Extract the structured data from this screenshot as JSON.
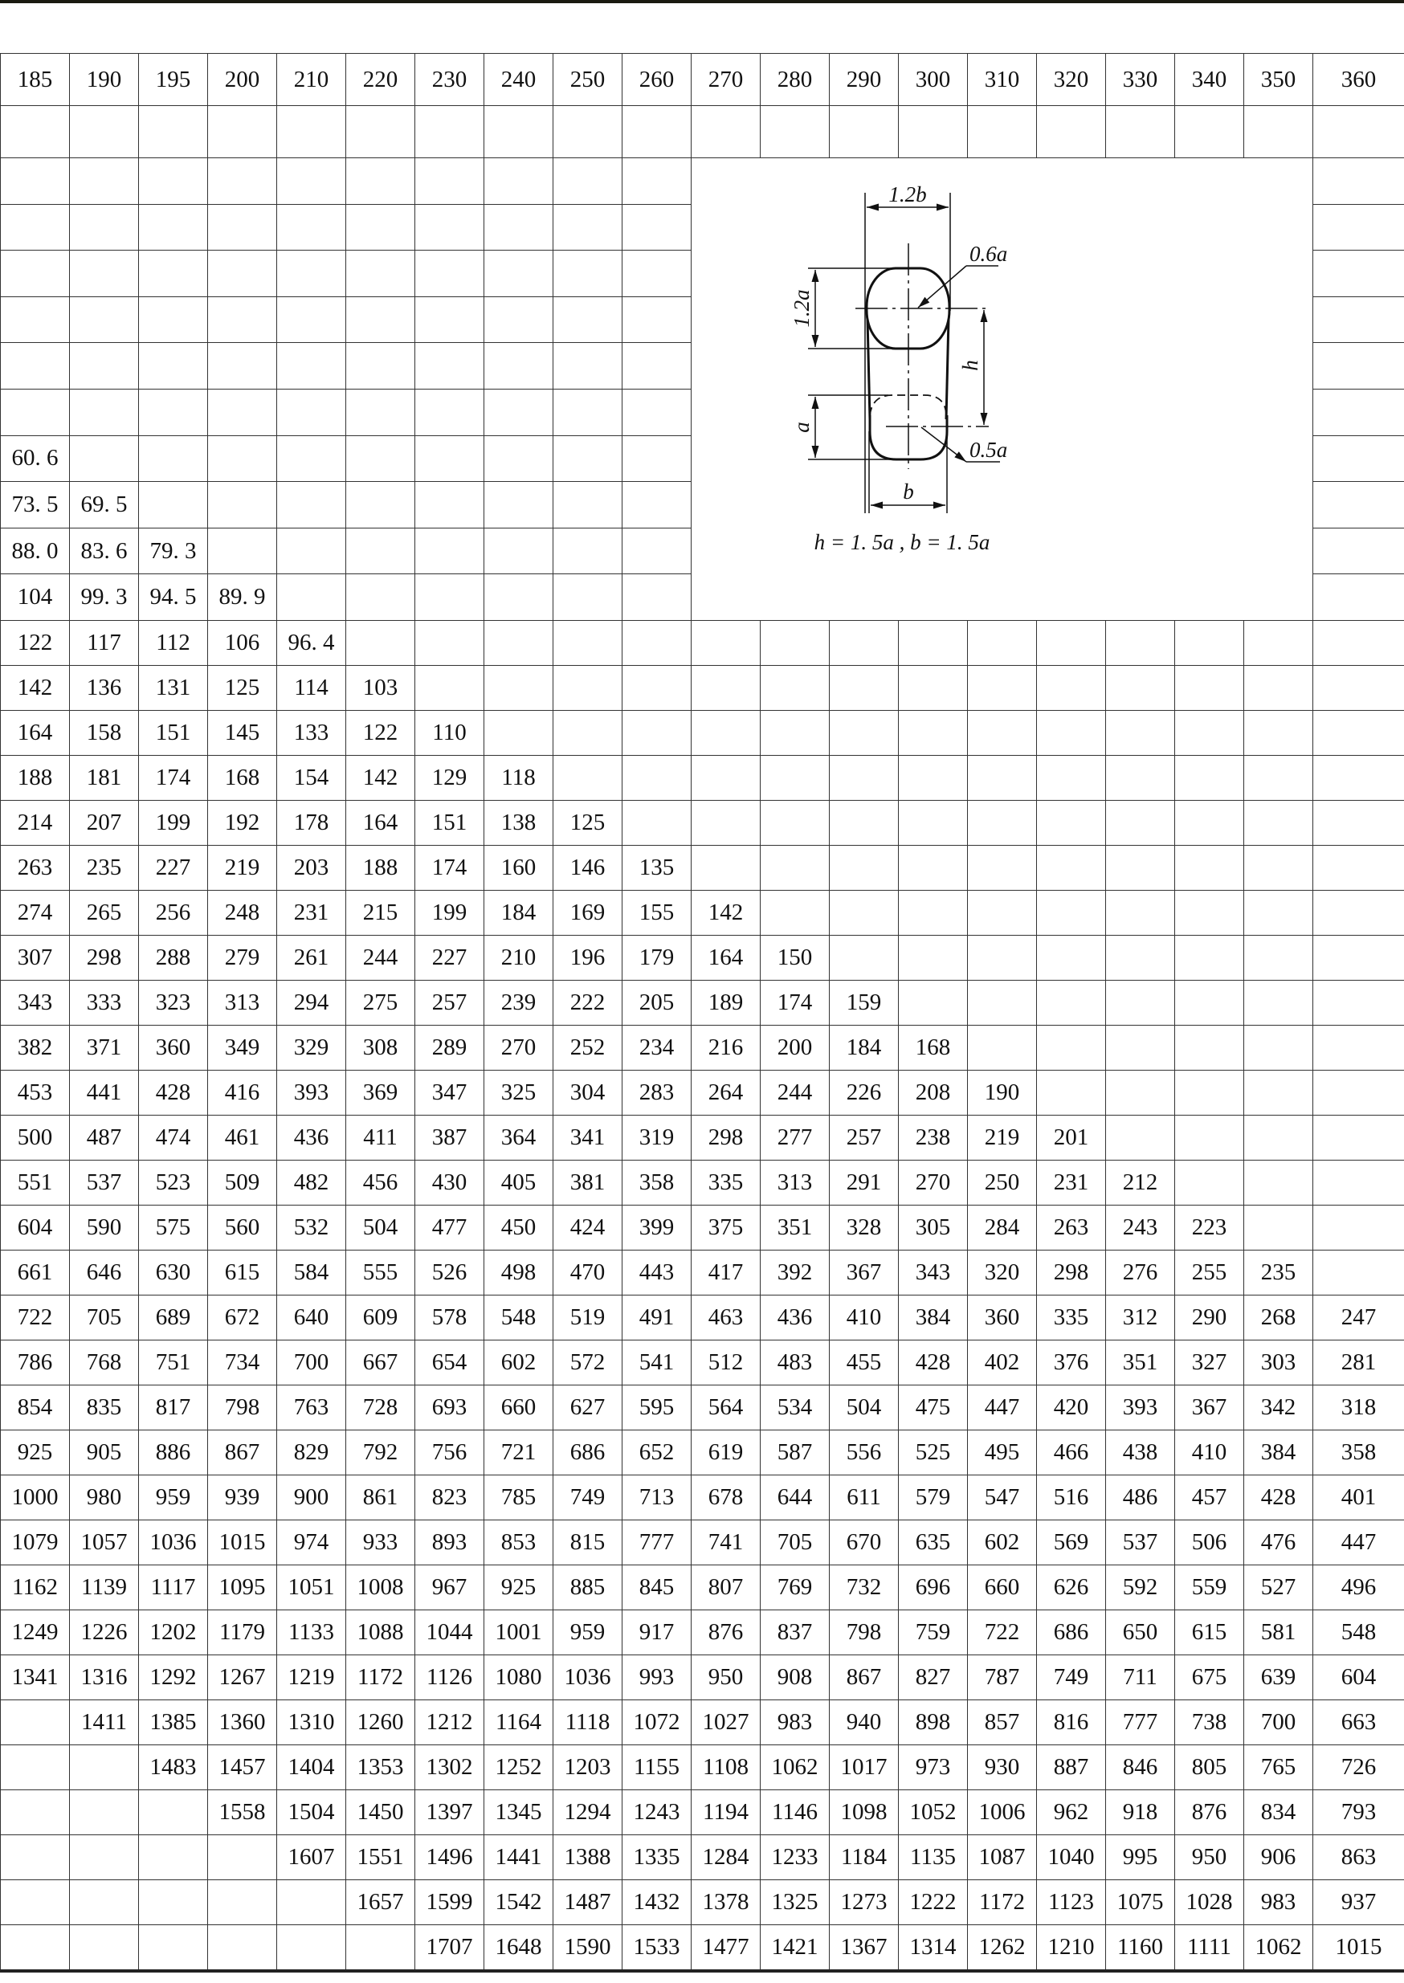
{
  "header": [
    "185",
    "190",
    "195",
    "200",
    "210",
    "220",
    "230",
    "240",
    "250",
    "260",
    "270",
    "280",
    "290",
    "300",
    "310",
    "320",
    "330",
    "340",
    "350",
    "360"
  ],
  "upper_rows": [
    [
      "",
      "",
      "",
      "",
      "",
      "",
      "",
      "",
      "",
      ""
    ],
    [
      "",
      "",
      "",
      "",
      "",
      "",
      "",
      "",
      "",
      ""
    ],
    [
      "",
      "",
      "",
      "",
      "",
      "",
      "",
      "",
      "",
      ""
    ],
    [
      "",
      "",
      "",
      "",
      "",
      "",
      "",
      "",
      "",
      ""
    ],
    [
      "",
      "",
      "",
      "",
      "",
      "",
      "",
      "",
      "",
      ""
    ],
    [
      "",
      "",
      "",
      "",
      "",
      "",
      "",
      "",
      "",
      ""
    ],
    [
      "60. 6",
      "",
      "",
      "",
      "",
      "",
      "",
      "",
      "",
      ""
    ],
    [
      "73. 5",
      "69. 5",
      "",
      "",
      "",
      "",
      "",
      "",
      "",
      ""
    ],
    [
      "88. 0",
      "83. 6",
      "79. 3",
      "",
      "",
      "",
      "",
      "",
      "",
      ""
    ],
    [
      "104",
      "99. 3",
      "94. 5",
      "89. 9",
      "",
      "",
      "",
      "",
      "",
      ""
    ]
  ],
  "rows": [
    [
      "122",
      "117",
      "112",
      "106",
      "96. 4",
      "",
      "",
      "",
      "",
      "",
      "",
      "",
      "",
      "",
      "",
      "",
      "",
      "",
      "",
      ""
    ],
    [
      "142",
      "136",
      "131",
      "125",
      "114",
      "103",
      "",
      "",
      "",
      "",
      "",
      "",
      "",
      "",
      "",
      "",
      "",
      "",
      "",
      ""
    ],
    [
      "164",
      "158",
      "151",
      "145",
      "133",
      "122",
      "110",
      "",
      "",
      "",
      "",
      "",
      "",
      "",
      "",
      "",
      "",
      "",
      "",
      ""
    ],
    [
      "188",
      "181",
      "174",
      "168",
      "154",
      "142",
      "129",
      "118",
      "",
      "",
      "",
      "",
      "",
      "",
      "",
      "",
      "",
      "",
      "",
      ""
    ],
    [
      "214",
      "207",
      "199",
      "192",
      "178",
      "164",
      "151",
      "138",
      "125",
      "",
      "",
      "",
      "",
      "",
      "",
      "",
      "",
      "",
      "",
      ""
    ],
    [
      "263",
      "235",
      "227",
      "219",
      "203",
      "188",
      "174",
      "160",
      "146",
      "135",
      "",
      "",
      "",
      "",
      "",
      "",
      "",
      "",
      "",
      ""
    ],
    [
      "274",
      "265",
      "256",
      "248",
      "231",
      "215",
      "199",
      "184",
      "169",
      "155",
      "142",
      "",
      "",
      "",
      "",
      "",
      "",
      "",
      "",
      ""
    ],
    [
      "307",
      "298",
      "288",
      "279",
      "261",
      "244",
      "227",
      "210",
      "196",
      "179",
      "164",
      "150",
      "",
      "",
      "",
      "",
      "",
      "",
      "",
      ""
    ],
    [
      "343",
      "333",
      "323",
      "313",
      "294",
      "275",
      "257",
      "239",
      "222",
      "205",
      "189",
      "174",
      "159",
      "",
      "",
      "",
      "",
      "",
      "",
      ""
    ],
    [
      "382",
      "371",
      "360",
      "349",
      "329",
      "308",
      "289",
      "270",
      "252",
      "234",
      "216",
      "200",
      "184",
      "168",
      "",
      "",
      "",
      "",
      "",
      ""
    ],
    [
      "453",
      "441",
      "428",
      "416",
      "393",
      "369",
      "347",
      "325",
      "304",
      "283",
      "264",
      "244",
      "226",
      "208",
      "190",
      "",
      "",
      "",
      "",
      ""
    ],
    [
      "500",
      "487",
      "474",
      "461",
      "436",
      "411",
      "387",
      "364",
      "341",
      "319",
      "298",
      "277",
      "257",
      "238",
      "219",
      "201",
      "",
      "",
      "",
      ""
    ],
    [
      "551",
      "537",
      "523",
      "509",
      "482",
      "456",
      "430",
      "405",
      "381",
      "358",
      "335",
      "313",
      "291",
      "270",
      "250",
      "231",
      "212",
      "",
      "",
      ""
    ],
    [
      "604",
      "590",
      "575",
      "560",
      "532",
      "504",
      "477",
      "450",
      "424",
      "399",
      "375",
      "351",
      "328",
      "305",
      "284",
      "263",
      "243",
      "223",
      "",
      ""
    ],
    [
      "661",
      "646",
      "630",
      "615",
      "584",
      "555",
      "526",
      "498",
      "470",
      "443",
      "417",
      "392",
      "367",
      "343",
      "320",
      "298",
      "276",
      "255",
      "235",
      ""
    ],
    [
      "722",
      "705",
      "689",
      "672",
      "640",
      "609",
      "578",
      "548",
      "519",
      "491",
      "463",
      "436",
      "410",
      "384",
      "360",
      "335",
      "312",
      "290",
      "268",
      "247"
    ],
    [
      "786",
      "768",
      "751",
      "734",
      "700",
      "667",
      "654",
      "602",
      "572",
      "541",
      "512",
      "483",
      "455",
      "428",
      "402",
      "376",
      "351",
      "327",
      "303",
      "281"
    ],
    [
      "854",
      "835",
      "817",
      "798",
      "763",
      "728",
      "693",
      "660",
      "627",
      "595",
      "564",
      "534",
      "504",
      "475",
      "447",
      "420",
      "393",
      "367",
      "342",
      "318"
    ],
    [
      "925",
      "905",
      "886",
      "867",
      "829",
      "792",
      "756",
      "721",
      "686",
      "652",
      "619",
      "587",
      "556",
      "525",
      "495",
      "466",
      "438",
      "410",
      "384",
      "358"
    ],
    [
      "1000",
      "980",
      "959",
      "939",
      "900",
      "861",
      "823",
      "785",
      "749",
      "713",
      "678",
      "644",
      "611",
      "579",
      "547",
      "516",
      "486",
      "457",
      "428",
      "401"
    ],
    [
      "1079",
      "1057",
      "1036",
      "1015",
      "974",
      "933",
      "893",
      "853",
      "815",
      "777",
      "741",
      "705",
      "670",
      "635",
      "602",
      "569",
      "537",
      "506",
      "476",
      "447"
    ],
    [
      "1162",
      "1139",
      "1117",
      "1095",
      "1051",
      "1008",
      "967",
      "925",
      "885",
      "845",
      "807",
      "769",
      "732",
      "696",
      "660",
      "626",
      "592",
      "559",
      "527",
      "496"
    ],
    [
      "1249",
      "1226",
      "1202",
      "1179",
      "1133",
      "1088",
      "1044",
      "1001",
      "959",
      "917",
      "876",
      "837",
      "798",
      "759",
      "722",
      "686",
      "650",
      "615",
      "581",
      "548"
    ],
    [
      "1341",
      "1316",
      "1292",
      "1267",
      "1219",
      "1172",
      "1126",
      "1080",
      "1036",
      "993",
      "950",
      "908",
      "867",
      "827",
      "787",
      "749",
      "711",
      "675",
      "639",
      "604"
    ],
    [
      "",
      "1411",
      "1385",
      "1360",
      "1310",
      "1260",
      "1212",
      "1164",
      "1118",
      "1072",
      "1027",
      "983",
      "940",
      "898",
      "857",
      "816",
      "777",
      "738",
      "700",
      "663"
    ],
    [
      "",
      "",
      "1483",
      "1457",
      "1404",
      "1353",
      "1302",
      "1252",
      "1203",
      "1155",
      "1108",
      "1062",
      "1017",
      "973",
      "930",
      "887",
      "846",
      "805",
      "765",
      "726"
    ],
    [
      "",
      "",
      "",
      "1558",
      "1504",
      "1450",
      "1397",
      "1345",
      "1294",
      "1243",
      "1194",
      "1146",
      "1098",
      "1052",
      "1006",
      "962",
      "918",
      "876",
      "834",
      "793"
    ],
    [
      "",
      "",
      "",
      "",
      "1607",
      "1551",
      "1496",
      "1441",
      "1388",
      "1335",
      "1284",
      "1233",
      "1184",
      "1135",
      "1087",
      "1040",
      "995",
      "950",
      "906",
      "863"
    ],
    [
      "",
      "",
      "",
      "",
      "",
      "1657",
      "1599",
      "1542",
      "1487",
      "1432",
      "1378",
      "1325",
      "1273",
      "1222",
      "1172",
      "1123",
      "1075",
      "1028",
      "983",
      "937"
    ],
    [
      "",
      "",
      "",
      "",
      "",
      "",
      "1707",
      "1648",
      "1590",
      "1533",
      "1477",
      "1421",
      "1367",
      "1314",
      "1262",
      "1210",
      "1160",
      "1111",
      "1062",
      "1015"
    ]
  ],
  "diagram": {
    "dim_top": "1.2b",
    "dim_upper_height": "1.2a",
    "dim_upper_radius": "0.6a",
    "dim_h": "h",
    "dim_lower_height": "a",
    "dim_lower_radius": "0.5a",
    "dim_bottom": "b",
    "formula": "h = 1. 5a , b = 1. 5a"
  }
}
